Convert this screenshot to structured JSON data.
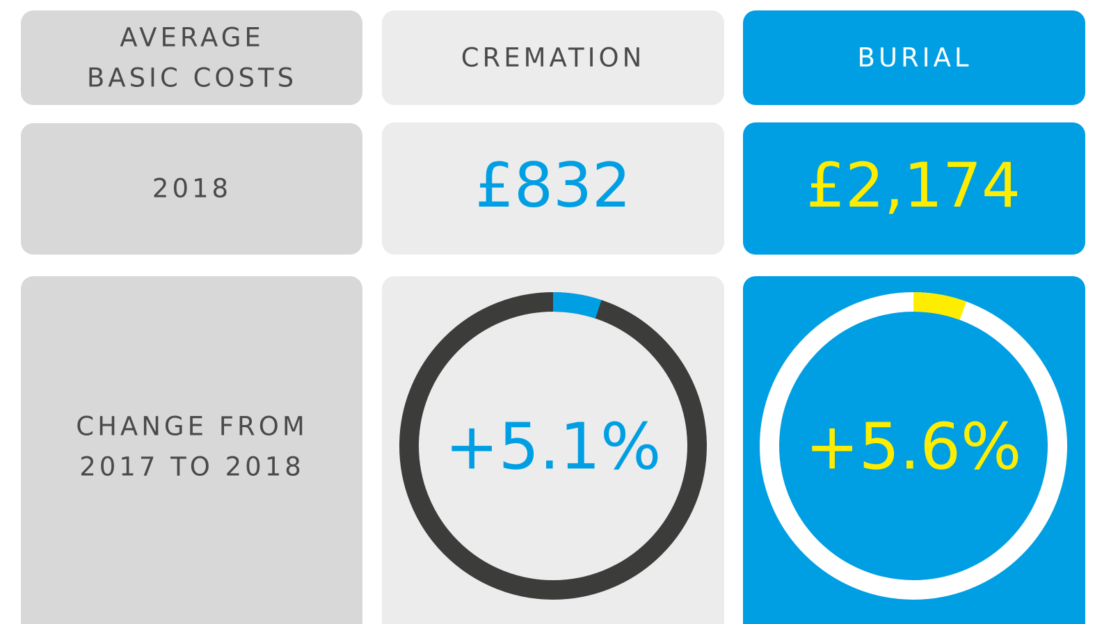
{
  "header": {
    "label": [
      "AVERAGE",
      "BASIC COSTS"
    ],
    "columns": [
      "CREMATION",
      "BURIAL"
    ]
  },
  "year_row": {
    "label": [
      "2018"
    ],
    "values": [
      "£832",
      "£2,174"
    ]
  },
  "change_row": {
    "label": [
      "CHANGE FROM",
      "2017 TO 2018"
    ],
    "values": [
      5.1,
      5.6
    ],
    "value_labels": [
      "+5.1%",
      "+5.6%"
    ]
  }
}
